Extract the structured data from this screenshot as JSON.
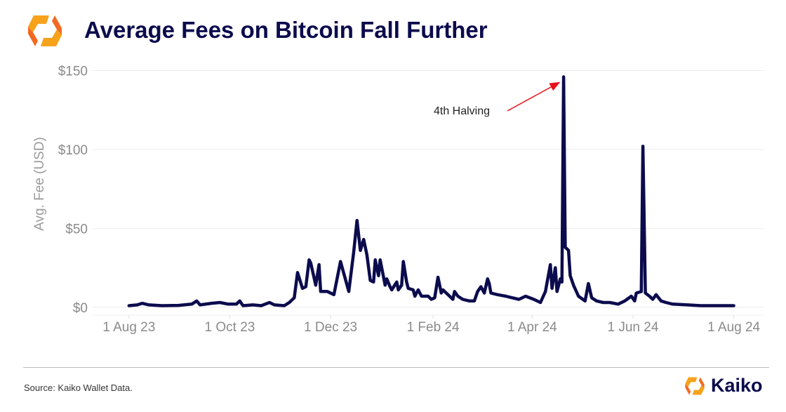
{
  "header": {
    "title": "Average Fees on Bitcoin Fall Further"
  },
  "footer": {
    "source": "Source: Kaiko Wallet Data.",
    "brand": "Kaiko"
  },
  "colors": {
    "line": "#0b0b4d",
    "title": "#0b0b4d",
    "arrow": "#e8101a",
    "logo_a": "#f7a21b",
    "logo_b": "#f26a21"
  },
  "chart_data": {
    "type": "line",
    "title": "Average Fees on Bitcoin Fall Further",
    "xlabel": "",
    "ylabel": "Avg. Fee (USD)",
    "x_origin": "2023-08-01",
    "x_unit": "days since origin",
    "xlim": [
      -22,
      384
    ],
    "ylim": [
      -5,
      152
    ],
    "grid": "horizontal",
    "yticks": [
      {
        "value": 0,
        "label": "$0"
      },
      {
        "value": 50,
        "label": "$50"
      },
      {
        "value": 100,
        "label": "$100"
      },
      {
        "value": 150,
        "label": "$150"
      }
    ],
    "xticks": [
      {
        "value": 0,
        "label": "1 Aug 23"
      },
      {
        "value": 61,
        "label": "1 Oct 23"
      },
      {
        "value": 122,
        "label": "1 Dec 23"
      },
      {
        "value": 184,
        "label": "1 Feb 24"
      },
      {
        "value": 244,
        "label": "1 Apr 24"
      },
      {
        "value": 305,
        "label": "1 Jun 24"
      },
      {
        "value": 366,
        "label": "1 Aug 24"
      }
    ],
    "annotations": [
      {
        "text": "4th Halving",
        "target_x": 263,
        "target_y": 146
      }
    ],
    "series": [
      {
        "name": "Average Fee (USD)",
        "x": [
          0,
          5,
          8,
          12,
          20,
          30,
          38,
          41,
          43,
          50,
          55,
          60,
          65,
          67,
          69,
          75,
          80,
          85,
          88,
          94,
          97,
          100,
          102,
          105,
          107,
          109,
          110,
          113,
          115,
          116,
          120,
          124,
          128,
          133,
          136,
          138,
          140,
          142,
          144,
          146,
          148,
          149,
          151,
          152,
          155,
          156,
          158,
          159,
          162,
          163,
          165,
          166,
          168,
          169,
          172,
          173,
          175,
          177,
          181,
          183,
          185,
          187,
          189,
          190,
          193,
          196,
          197,
          199,
          202,
          206,
          209,
          211,
          213,
          215,
          217,
          218,
          219,
          223,
          228,
          232,
          236,
          240,
          245,
          249,
          252,
          255,
          256,
          258,
          259,
          261,
          262,
          263,
          264,
          266,
          267,
          269,
          272,
          276,
          278,
          280,
          283,
          287,
          291,
          296,
          300,
          304,
          306,
          307,
          310,
          311,
          312.5,
          315,
          317,
          319,
          322,
          325,
          329,
          338,
          346,
          356,
          366
        ],
        "y": [
          1,
          1.5,
          2.5,
          1.5,
          1,
          1.2,
          2,
          4,
          1.5,
          2.5,
          3,
          2,
          2,
          4,
          1,
          1.5,
          1,
          3,
          1.5,
          1,
          3,
          6,
          22,
          12,
          13,
          30,
          28,
          14,
          27,
          10,
          10,
          8,
          29,
          10,
          35,
          55,
          36,
          43,
          33,
          17,
          16,
          30,
          20,
          30,
          14,
          18,
          13,
          11,
          16,
          11,
          14,
          29,
          16,
          12,
          11,
          7,
          11,
          7,
          7,
          5,
          6,
          19,
          9,
          11,
          8,
          5,
          10,
          7,
          5,
          4,
          4,
          10,
          13,
          9,
          18,
          15,
          9,
          8,
          7,
          6,
          5,
          7,
          5,
          3,
          10,
          27,
          12,
          25,
          10,
          18,
          16,
          146,
          38,
          36,
          20,
          14,
          7,
          4,
          15,
          6,
          4,
          3,
          3,
          2,
          4,
          7,
          4,
          9,
          10,
          102,
          9,
          7,
          5,
          8,
          4,
          3,
          2,
          1.5,
          1,
          1,
          1
        ]
      }
    ]
  }
}
